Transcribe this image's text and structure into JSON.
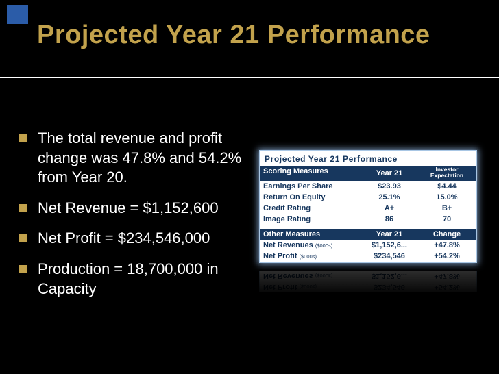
{
  "slide": {
    "title": "Projected Year 21 Performance",
    "bullets": [
      {
        "text": "The total revenue and profit change was 47.8% and 54.2% from Year 20."
      },
      {
        "text": "Net Revenue = $1,152,600"
      },
      {
        "text": "Net Profit = $234,546,000"
      },
      {
        "text": "Production = 18,700,000 in Capacity"
      }
    ]
  },
  "report": {
    "title": "Projected Year 21 Performance",
    "scoring": {
      "headers": {
        "col0": "Scoring Measures",
        "col1": "Year 21",
        "col2": "Investor Expectation"
      },
      "rows": [
        {
          "label": "Earnings Per Share",
          "year21": "$23.93",
          "expect": "$4.44"
        },
        {
          "label": "Return On Equity",
          "year21": "25.1%",
          "expect": "15.0%"
        },
        {
          "label": "Credit Rating",
          "year21": "A+",
          "expect": "B+"
        },
        {
          "label": "Image Rating",
          "year21": "86",
          "expect": "70"
        }
      ]
    },
    "other": {
      "headers": {
        "col0": "Other Measures",
        "col1": "Year 21",
        "col2": "Change"
      },
      "rows": [
        {
          "label": "Net Revenues",
          "unit": "($000s)",
          "year21": "$1,152,6...",
          "expect": "+47.8%"
        },
        {
          "label": "Net Profit",
          "unit": "($000s)",
          "year21": "$234,546",
          "expect": "+54.2%"
        }
      ]
    }
  },
  "colors": {
    "title_gold": "#C2A24C",
    "bullet_gold": "#C2A24C",
    "accent_square_blue": "#2B5CA8",
    "table_header_navy": "#17375E",
    "table_border_blue": "#A8C6E4",
    "body_text": "#FFFFFF",
    "background": "#000000"
  }
}
